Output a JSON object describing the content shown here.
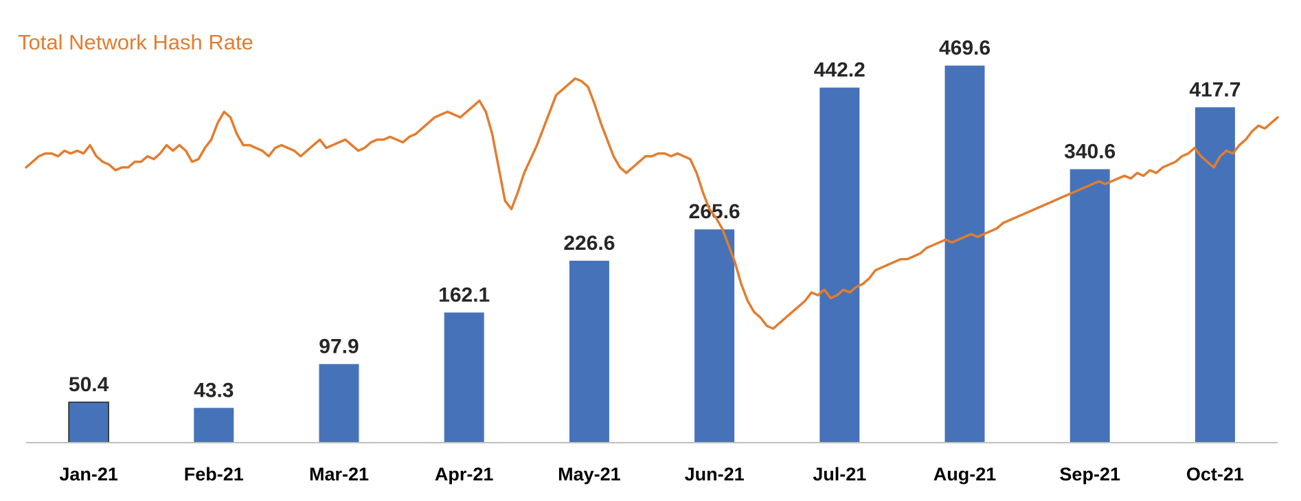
{
  "chart_data": {
    "type": "bar",
    "title": "",
    "xlabel": "",
    "ylabel": "",
    "categories": [
      "Jan-21",
      "Feb-21",
      "Mar-21",
      "Apr-21",
      "May-21",
      "Jun-21",
      "Jul-21",
      "Aug-21",
      "Sep-21",
      "Oct-21"
    ],
    "values": [
      50.4,
      43.3,
      97.9,
      162.1,
      226.6,
      265.6,
      442.2,
      469.6,
      340.6,
      417.7
    ],
    "value_labels": [
      "50.4",
      "43.3",
      "97.9",
      "162.1",
      "226.6",
      "265.6",
      "442.2",
      "469.6",
      "340.6",
      "417.7"
    ],
    "ylim": [
      0,
      500
    ],
    "bar_color": "#4672b9",
    "grid": false,
    "line_series": {
      "name": "Total Network Hash Rate",
      "color": "#e27d2f",
      "scale": "relative (no axis printed)",
      "values": [
        0.62,
        0.64,
        0.66,
        0.67,
        0.67,
        0.66,
        0.68,
        0.67,
        0.68,
        0.67,
        0.7,
        0.66,
        0.64,
        0.63,
        0.61,
        0.62,
        0.62,
        0.64,
        0.64,
        0.66,
        0.65,
        0.67,
        0.7,
        0.68,
        0.7,
        0.68,
        0.64,
        0.65,
        0.69,
        0.72,
        0.78,
        0.82,
        0.8,
        0.74,
        0.7,
        0.7,
        0.69,
        0.68,
        0.66,
        0.69,
        0.7,
        0.69,
        0.68,
        0.66,
        0.68,
        0.7,
        0.72,
        0.69,
        0.7,
        0.71,
        0.72,
        0.7,
        0.68,
        0.69,
        0.71,
        0.72,
        0.72,
        0.73,
        0.72,
        0.71,
        0.73,
        0.74,
        0.76,
        0.78,
        0.8,
        0.81,
        0.82,
        0.81,
        0.8,
        0.82,
        0.84,
        0.86,
        0.82,
        0.74,
        0.62,
        0.5,
        0.47,
        0.53,
        0.6,
        0.65,
        0.7,
        0.76,
        0.82,
        0.88,
        0.9,
        0.92,
        0.94,
        0.93,
        0.91,
        0.85,
        0.78,
        0.72,
        0.66,
        0.62,
        0.6,
        0.62,
        0.64,
        0.66,
        0.66,
        0.67,
        0.67,
        0.66,
        0.67,
        0.66,
        0.65,
        0.6,
        0.53,
        0.47,
        0.44,
        0.4,
        0.34,
        0.28,
        0.2,
        0.14,
        0.1,
        0.08,
        0.05,
        0.04,
        0.06,
        0.08,
        0.1,
        0.12,
        0.14,
        0.17,
        0.16,
        0.18,
        0.15,
        0.16,
        0.18,
        0.17,
        0.19,
        0.2,
        0.22,
        0.25,
        0.26,
        0.27,
        0.28,
        0.29,
        0.29,
        0.3,
        0.31,
        0.33,
        0.34,
        0.35,
        0.36,
        0.35,
        0.36,
        0.37,
        0.38,
        0.37,
        0.38,
        0.39,
        0.4,
        0.42,
        0.43,
        0.44,
        0.45,
        0.46,
        0.47,
        0.48,
        0.49,
        0.5,
        0.51,
        0.52,
        0.53,
        0.54,
        0.55,
        0.56,
        0.57,
        0.56,
        0.57,
        0.58,
        0.59,
        0.58,
        0.6,
        0.59,
        0.61,
        0.6,
        0.62,
        0.63,
        0.64,
        0.66,
        0.67,
        0.69,
        0.66,
        0.64,
        0.62,
        0.66,
        0.68,
        0.67,
        0.7,
        0.72,
        0.75,
        0.77,
        0.76,
        0.78,
        0.8
      ]
    }
  }
}
